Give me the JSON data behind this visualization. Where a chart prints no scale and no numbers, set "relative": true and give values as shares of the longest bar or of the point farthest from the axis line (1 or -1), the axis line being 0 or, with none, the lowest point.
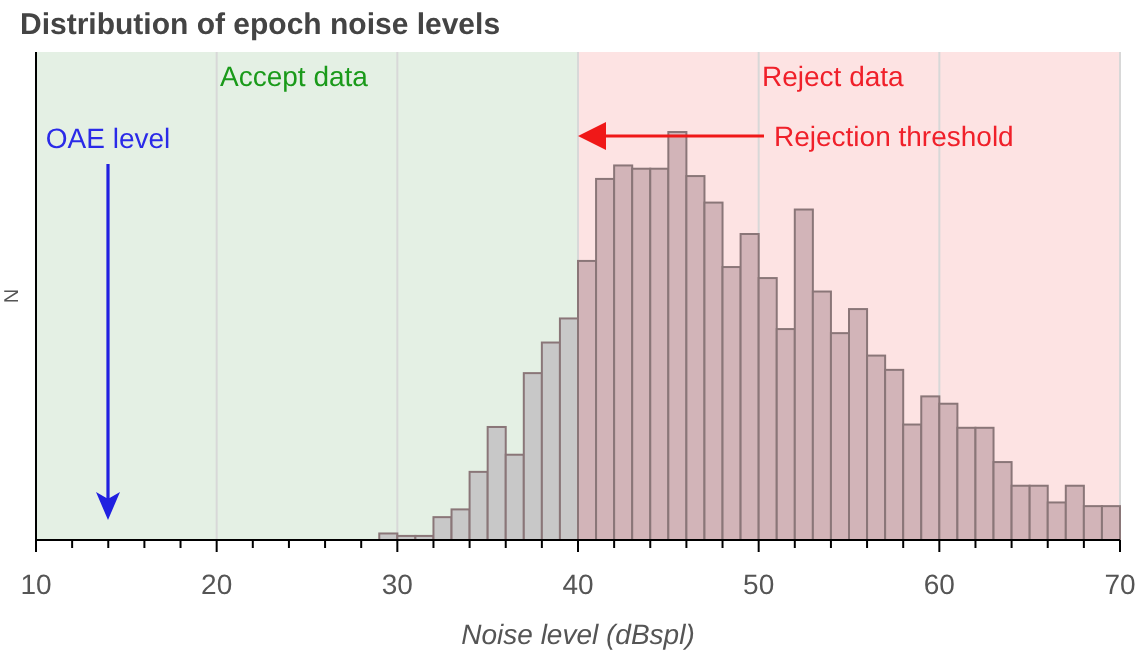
{
  "chart_data": {
    "type": "bar",
    "title": "Distribution of epoch noise levels",
    "xlabel": "Noise level (dBspl)",
    "ylabel": "N",
    "relative": true,
    "x": [
      29.5,
      30.5,
      31.5,
      32.5,
      33.5,
      34.5,
      35.5,
      36.5,
      37.5,
      38.5,
      39.5,
      40.5,
      41.5,
      42.5,
      43.5,
      44.5,
      45.5,
      46.5,
      47.5,
      48.5,
      49.5,
      50.5,
      51.5,
      52.5,
      53.5,
      54.5,
      55.5,
      56.5,
      57.5,
      58.5,
      59.5,
      60.5,
      61.5,
      62.5,
      63.5,
      64.5,
      65.5,
      66.5,
      67.5,
      68.5,
      69.5
    ],
    "values": [
      0.016,
      0.01,
      0.01,
      0.056,
      0.075,
      0.167,
      0.277,
      0.209,
      0.409,
      0.484,
      0.543,
      0.684,
      0.885,
      0.918,
      0.91,
      0.91,
      1,
      0.892,
      0.827,
      0.669,
      0.75,
      0.642,
      0.517,
      0.81,
      0.609,
      0.507,
      0.566,
      0.452,
      0.417,
      0.283,
      0.352,
      0.334,
      0.275,
      0.275,
      0.191,
      0.133,
      0.133,
      0.092,
      0.133,
      0.083,
      0.083
    ],
    "colors": [
      "#c8c8c8",
      "#c8c8c8",
      "#c8c8c8",
      "#c8c8c8",
      "#c8c8c8",
      "#c8c8c8",
      "#c8c8c8",
      "#c8c8c8",
      "#c8c8c8",
      "#c8c8c8",
      "#c8c8c8",
      "#d2b4b8",
      "#d2b4b8",
      "#d2b4b8",
      "#d2b4b8",
      "#d2b4b8",
      "#d2b4b8",
      "#d2b4b8",
      "#d2b4b8",
      "#d2b4b8",
      "#d2b4b8",
      "#d2b4b8",
      "#d2b4b8",
      "#d2b4b8",
      "#d2b4b8",
      "#d2b4b8",
      "#d2b4b8",
      "#d2b4b8",
      "#d2b4b8",
      "#d2b4b8",
      "#d2b4b8",
      "#d2b4b8",
      "#d2b4b8",
      "#d2b4b8",
      "#d2b4b8",
      "#d2b4b8",
      "#d2b4b8",
      "#d2b4b8",
      "#d2b4b8",
      "#d2b4b8",
      "#d2b4b8"
    ],
    "xlim": [
      10,
      70
    ],
    "xticks": [
      10,
      {
        "value": 12,
        "label": null
      },
      {
        "value": 14,
        "label": null
      },
      {
        "value": 16,
        "label": null
      },
      {
        "value": 18,
        "label": null
      },
      20,
      {
        "value": 22,
        "label": null
      },
      {
        "value": 24,
        "label": null
      },
      {
        "value": 26,
        "label": null
      },
      {
        "value": 28,
        "label": null
      },
      30,
      {
        "value": 32,
        "label": null
      },
      {
        "value": 34,
        "label": null
      },
      {
        "value": 36,
        "label": null
      },
      {
        "value": 38,
        "label": null
      },
      40,
      {
        "value": 42,
        "label": null
      },
      {
        "value": 44,
        "label": null
      },
      {
        "value": 46,
        "label": null
      },
      {
        "value": 48,
        "label": null
      },
      50,
      {
        "value": 52,
        "label": null
      },
      {
        "value": 54,
        "label": null
      },
      {
        "value": 56,
        "label": null
      },
      {
        "value": 58,
        "label": null
      },
      60,
      {
        "value": 62,
        "label": null
      },
      {
        "value": 64,
        "label": null
      },
      {
        "value": 66,
        "label": null
      },
      {
        "value": 68,
        "label": null
      },
      70
    ],
    "grid": "x",
    "bands": [
      {
        "axis": "x",
        "from": 10,
        "to": 40,
        "label": "Accept data",
        "color": "#e4f0e4"
      },
      {
        "axis": "x",
        "from": 40,
        "to": 70,
        "label": "Reject data",
        "color": "#fde3e3"
      }
    ],
    "annotations": [
      "OAE level",
      "Rejection threshold"
    ]
  }
}
